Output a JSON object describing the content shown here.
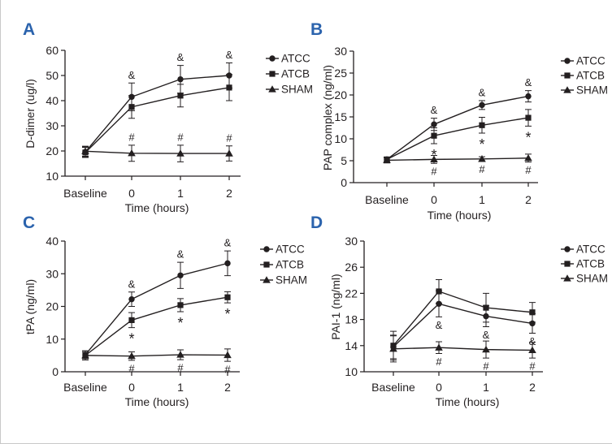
{
  "colors": {
    "panel_label": "#2b63ad",
    "ink": "#231f20"
  },
  "chart_data": [
    {
      "panel_label": "A",
      "type": "line",
      "categories": [
        "Baseline",
        "0",
        "1",
        "2"
      ],
      "xlabel": "Time (hours)",
      "ylabel": "D-dimer (ug/l)",
      "ylim": [
        10,
        60
      ],
      "yticks": [
        10,
        20,
        30,
        40,
        50,
        60
      ],
      "grid": false,
      "legend": "right",
      "series": [
        {
          "name": "ATCC",
          "marker": "circle",
          "values": [
            19.6,
            41.5,
            48.5,
            50.0
          ],
          "errors": [
            2.0,
            5.5,
            5.5,
            5.0
          ]
        },
        {
          "name": "ATCB",
          "marker": "square",
          "values": [
            19.4,
            37.5,
            42.0,
            45.2
          ],
          "errors": [
            2.0,
            4.5,
            4.5,
            5.2
          ]
        },
        {
          "name": "SHAM",
          "marker": "triangle",
          "values": [
            19.9,
            19.1,
            19.0,
            19.0
          ],
          "errors": [
            2.0,
            3.2,
            3.3,
            3.0
          ]
        }
      ],
      "annotations": [
        {
          "symbol": "&",
          "series": "ATCC",
          "side": "above",
          "categories": [
            "0",
            "1",
            "2"
          ]
        },
        {
          "symbol": "#",
          "series": "SHAM",
          "side": "above",
          "categories": [
            "0",
            "1",
            "2"
          ]
        }
      ]
    },
    {
      "panel_label": "B",
      "type": "line",
      "categories": [
        "Baseline",
        "0",
        "1",
        "2"
      ],
      "xlabel": "Time (hours)",
      "ylabel": "PAP complex (ng/ml)",
      "ylim": [
        0,
        30
      ],
      "yticks": [
        0,
        5,
        10,
        15,
        20,
        25,
        30
      ],
      "grid": false,
      "legend": "right",
      "series": [
        {
          "name": "ATCC",
          "marker": "circle",
          "values": [
            5.3,
            13.3,
            17.7,
            19.7
          ],
          "errors": [
            0.5,
            1.4,
            1.0,
            1.3
          ]
        },
        {
          "name": "ATCB",
          "marker": "square",
          "values": [
            5.3,
            10.7,
            13.1,
            14.8
          ],
          "errors": [
            0.5,
            1.8,
            1.8,
            1.9
          ]
        },
        {
          "name": "SHAM",
          "marker": "triangle",
          "values": [
            5.1,
            5.3,
            5.4,
            5.6
          ],
          "errors": [
            0.6,
            0.9,
            0.5,
            0.9
          ]
        }
      ],
      "annotations": [
        {
          "symbol": "&",
          "series": "ATCC",
          "side": "above",
          "categories": [
            "0",
            "1",
            "2"
          ]
        },
        {
          "symbol": "*",
          "series": "ATCB",
          "side": "below",
          "categories": [
            "0",
            "1",
            "2"
          ]
        },
        {
          "symbol": "#",
          "series": "SHAM",
          "side": "below",
          "categories": [
            "0",
            "1",
            "2"
          ]
        }
      ]
    },
    {
      "panel_label": "C",
      "type": "line",
      "categories": [
        "Baseline",
        "0",
        "1",
        "2"
      ],
      "xlabel": "Time (hours)",
      "ylabel": "tPA (ng/ml)",
      "ylim": [
        0,
        40
      ],
      "yticks": [
        0,
        10,
        20,
        30,
        40
      ],
      "grid": false,
      "legend": "right",
      "series": [
        {
          "name": "ATCC",
          "marker": "circle",
          "values": [
            5.2,
            22.2,
            29.5,
            33.2
          ],
          "errors": [
            1.2,
            2.2,
            4.0,
            3.8
          ]
        },
        {
          "name": "ATCB",
          "marker": "square",
          "values": [
            5.0,
            15.8,
            20.4,
            22.8
          ],
          "errors": [
            1.4,
            2.3,
            2.0,
            1.7
          ]
        },
        {
          "name": "SHAM",
          "marker": "triangle",
          "values": [
            5.0,
            4.8,
            5.2,
            5.1
          ],
          "errors": [
            1.0,
            1.3,
            1.5,
            1.9
          ]
        }
      ],
      "annotations": [
        {
          "symbol": "&",
          "series": "ATCC",
          "side": "above",
          "categories": [
            "0",
            "1",
            "2"
          ]
        },
        {
          "symbol": "*",
          "series": "ATCB",
          "side": "below",
          "categories": [
            "0",
            "1",
            "2"
          ]
        },
        {
          "symbol": "#",
          "series": "SHAM",
          "side": "below",
          "categories": [
            "0",
            "1",
            "2"
          ]
        }
      ]
    },
    {
      "panel_label": "D",
      "type": "line",
      "categories": [
        "Baseline",
        "0",
        "1",
        "2"
      ],
      "xlabel": "Time (hours)",
      "ylabel": "PAI-1 (ng/ml)",
      "ylim": [
        10,
        30
      ],
      "yticks": [
        10,
        14,
        18,
        22,
        26,
        30
      ],
      "grid": false,
      "legend": "right",
      "series": [
        {
          "name": "ATCC",
          "marker": "circle",
          "values": [
            13.8,
            20.4,
            18.5,
            17.4
          ],
          "errors": [
            1.8,
            2.0,
            1.6,
            1.5
          ]
        },
        {
          "name": "ATCB",
          "marker": "square",
          "values": [
            14.0,
            22.3,
            19.8,
            19.1
          ],
          "errors": [
            2.2,
            1.8,
            2.2,
            1.5
          ]
        },
        {
          "name": "SHAM",
          "marker": "triangle",
          "values": [
            13.5,
            13.7,
            13.4,
            13.3
          ],
          "errors": [
            2.0,
            0.9,
            1.3,
            1.2
          ]
        }
      ],
      "annotations": [
        {
          "symbol": "&",
          "series": "ATCC",
          "side": "below",
          "categories": [
            "0",
            "1",
            "2"
          ]
        },
        {
          "symbol": "#",
          "series": "SHAM",
          "side": "below",
          "categories": [
            "0",
            "1",
            "2"
          ]
        }
      ]
    }
  ]
}
